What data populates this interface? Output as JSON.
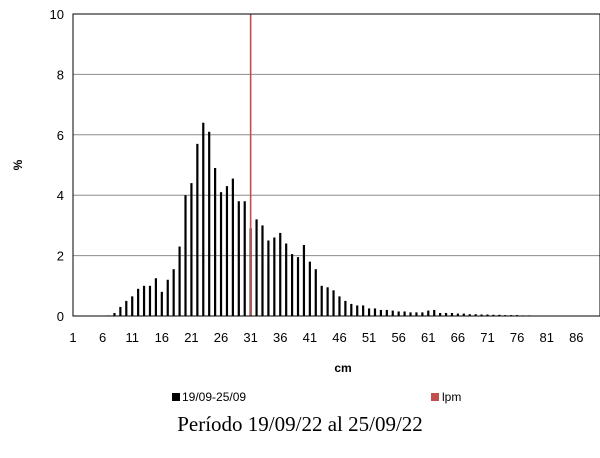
{
  "caption": "Período 19/09/22 al 25/09/22",
  "chart_data": {
    "type": "bar",
    "xlabel": "cm",
    "ylabel": "%",
    "ylim": [
      0,
      10
    ],
    "yticks": [
      0,
      2,
      4,
      6,
      8,
      10
    ],
    "xlim": [
      1,
      90
    ],
    "xticks": [
      1,
      6,
      11,
      16,
      21,
      26,
      31,
      36,
      41,
      46,
      51,
      56,
      61,
      66,
      71,
      76,
      81,
      86
    ],
    "grid": true,
    "legend_position": "bottom",
    "series": [
      {
        "name": "19/09-25/09",
        "color": "#000000",
        "x": [
          7,
          8,
          9,
          10,
          11,
          12,
          13,
          14,
          15,
          16,
          17,
          18,
          19,
          20,
          21,
          22,
          23,
          24,
          25,
          26,
          27,
          28,
          29,
          30,
          31,
          32,
          33,
          34,
          35,
          36,
          37,
          38,
          39,
          40,
          41,
          42,
          43,
          44,
          45,
          46,
          47,
          48,
          49,
          50,
          51,
          52,
          53,
          54,
          55,
          56,
          57,
          58,
          59,
          60,
          61,
          62,
          63,
          64,
          65,
          66,
          67,
          68,
          69,
          70,
          71,
          72,
          73,
          74,
          75,
          76,
          77,
          78
        ],
        "values": [
          0.02,
          0.1,
          0.3,
          0.5,
          0.65,
          0.9,
          1.0,
          1.0,
          1.25,
          0.8,
          1.2,
          1.55,
          2.3,
          4.0,
          4.4,
          5.7,
          6.4,
          6.1,
          4.9,
          4.1,
          4.3,
          4.55,
          3.8,
          3.8,
          2.9,
          3.2,
          3.0,
          2.5,
          2.6,
          2.75,
          2.4,
          2.05,
          1.95,
          2.35,
          1.8,
          1.55,
          1.0,
          0.95,
          0.85,
          0.65,
          0.5,
          0.4,
          0.35,
          0.35,
          0.25,
          0.25,
          0.2,
          0.2,
          0.18,
          0.15,
          0.15,
          0.12,
          0.12,
          0.12,
          0.18,
          0.2,
          0.1,
          0.1,
          0.1,
          0.08,
          0.08,
          0.06,
          0.06,
          0.05,
          0.05,
          0.04,
          0.04,
          0.03,
          0.03,
          0.03,
          0.02,
          0.02
        ]
      },
      {
        "name": "lpm",
        "color": "#c0504d",
        "type": "vline",
        "x": 31
      }
    ]
  }
}
